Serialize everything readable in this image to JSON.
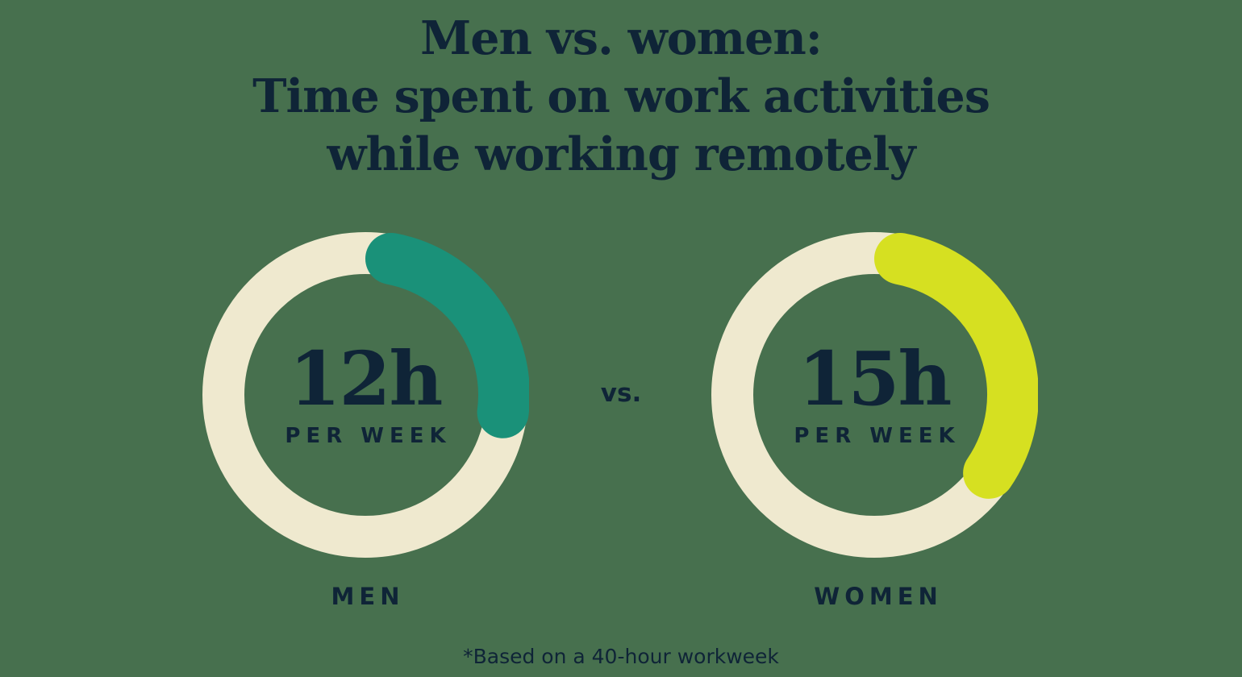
{
  "chart_data": {
    "type": "donut-comparison",
    "title_lines": [
      "Men vs. women:",
      "Time spent on work activities",
      "while working remotely"
    ],
    "vs_label": "vs.",
    "note": "*Based on a 40-hour workweek",
    "total_hours_basis": 40,
    "ring_color": "#EFE9CF",
    "text_color": "#0F2437",
    "background_color": "#47704E",
    "donuts": [
      {
        "label": "MEN",
        "value_hours": 12,
        "value_label": "12h",
        "unit_label": "PER WEEK",
        "fraction_of_workweek": 0.3,
        "arc_color": "#1A9179"
      },
      {
        "label": "WOMEN",
        "value_hours": 15,
        "value_label": "15h",
        "unit_label": "PER WEEK",
        "fraction_of_workweek": 0.375,
        "arc_color": "#D6E021"
      }
    ]
  }
}
